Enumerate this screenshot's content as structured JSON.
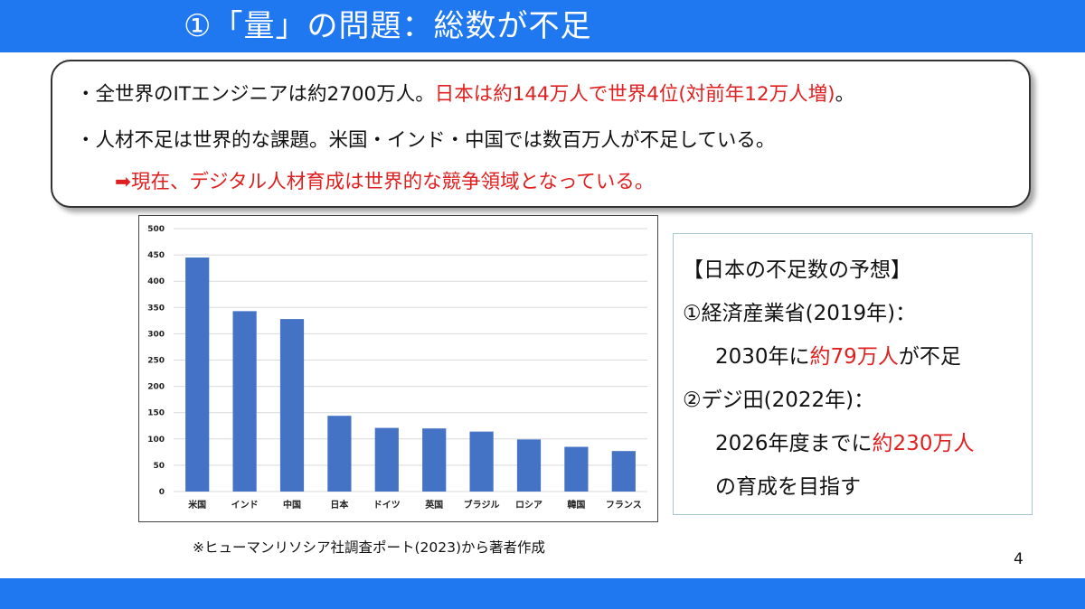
{
  "header": {
    "title": "①「量」の問題：総数が不足",
    "bar_color": "#1f78f0"
  },
  "callout": {
    "bullet1_black": "・全世界のITエンジニアは約2700万人。",
    "bullet1_red": "日本は約144万人で世界4位(対前年12万人増)",
    "bullet1_end": "。",
    "bullet2": "・人材不足は世界的な課題。米国・インド・中国では数百万人が不足している。",
    "conclusion": "➡現在、デジタル人材育成は世界的な競争領域となっている。",
    "highlight_color": "#e02020"
  },
  "chart_data": {
    "type": "bar",
    "categories": [
      "米国",
      "インド",
      "中国",
      "日本",
      "ドイツ",
      "英国",
      "ブラジル",
      "ロシア",
      "韓国",
      "フランス"
    ],
    "values": [
      445,
      343,
      328,
      144,
      121,
      120,
      114,
      99,
      85,
      77
    ],
    "ylim": [
      0,
      500
    ],
    "yticks": [
      0,
      50,
      100,
      150,
      200,
      250,
      300,
      350,
      400,
      450,
      500
    ],
    "title": "",
    "xlabel": "",
    "ylabel": "",
    "grid": true,
    "bar_color": "#4472c4"
  },
  "source_note": "※ヒューマンリソシア社調査ポート(2023)から著者作成",
  "info_box": {
    "heading": "【日本の不足数の予想】",
    "item1_title": "①経済産業省(2019年)：",
    "item1_pre": "2030年に",
    "item1_red": "約79万人",
    "item1_post": "が不足",
    "item2_title": "②デジ田(2022年)：",
    "item2_pre": "2026年度までに",
    "item2_red": "約230万人",
    "item2_line2": "の育成を目指す"
  },
  "page_number": "4"
}
